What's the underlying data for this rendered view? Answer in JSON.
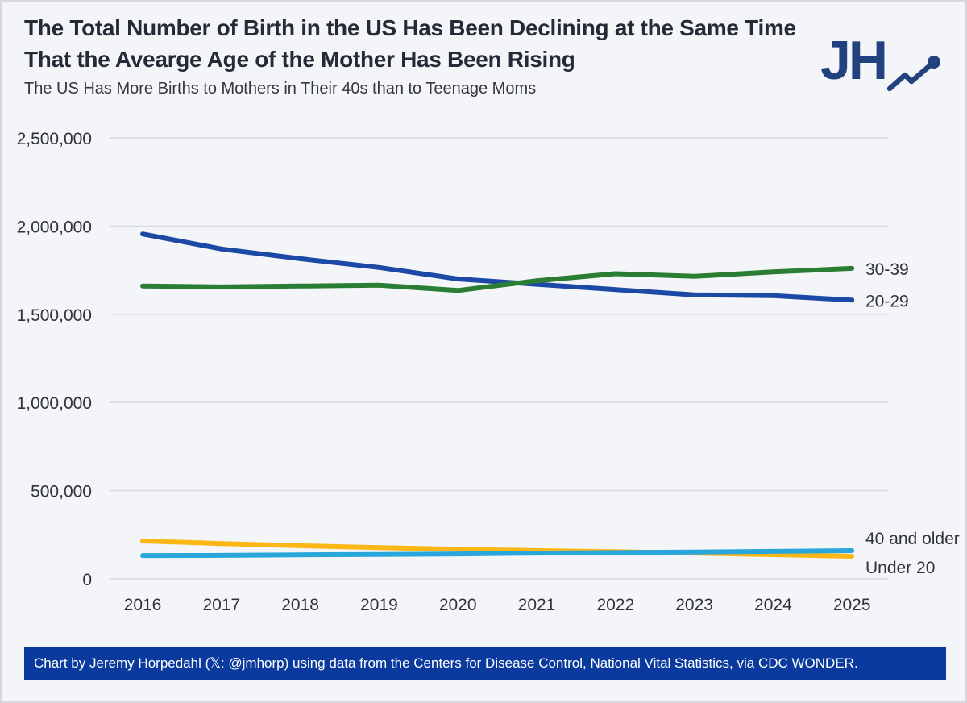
{
  "header": {
    "title_line1": "The Total Number of Birth in the US Has Been Declining at the Same Time",
    "title_line2": "That the Avearge Age of the Mother Has Been Rising",
    "subtitle": "The US Has More Births to Mothers in Their 40s than to Teenage Moms",
    "logo_text": "JH"
  },
  "chart_data": {
    "type": "line",
    "categories": [
      "2016",
      "2017",
      "2018",
      "2019",
      "2020",
      "2021",
      "2022",
      "2023",
      "2024",
      "2025"
    ],
    "series": [
      {
        "name": "20-29",
        "color": "#1c49a5",
        "values": [
          1955000,
          1870000,
          1815000,
          1765000,
          1700000,
          1670000,
          1640000,
          1610000,
          1605000,
          1580000
        ]
      },
      {
        "name": "30-39",
        "color": "#2a7d32",
        "values": [
          1660000,
          1655000,
          1660000,
          1665000,
          1635000,
          1690000,
          1730000,
          1715000,
          1740000,
          1760000
        ]
      },
      {
        "name": "Under 20",
        "color": "#fcb615",
        "values": [
          215000,
          200000,
          188000,
          177000,
          168000,
          160000,
          154000,
          146000,
          137000,
          128000
        ]
      },
      {
        "name": "40 and older",
        "color": "#29a7dc",
        "values": [
          132000,
          133000,
          136000,
          138000,
          141000,
          146000,
          149000,
          152000,
          156000,
          160000
        ]
      }
    ],
    "ylim": [
      0,
      2500000
    ],
    "ytick_step": 500000,
    "ytick_labels": [
      "0",
      "500,000",
      "1,000,000",
      "1,500,000",
      "2,000,000",
      "2,500,000"
    ],
    "xlabel": "",
    "ylabel": "",
    "grid": true,
    "legend_position": "right-end-labels"
  },
  "footer": {
    "credit": "Chart by Jeremy Horpedahl (𝕏: @jmhorp) using data from the Centers for Disease Control, National Vital Statistics, via CDC WONDER."
  },
  "colors": {
    "background": "#f4f5f8",
    "gridline": "#d8dade",
    "axis_text": "#303338",
    "title_text": "#262a36",
    "logo_navy": "#21417f",
    "footer_bar": "#0a3a9e",
    "footer_text": "#ffffff"
  }
}
